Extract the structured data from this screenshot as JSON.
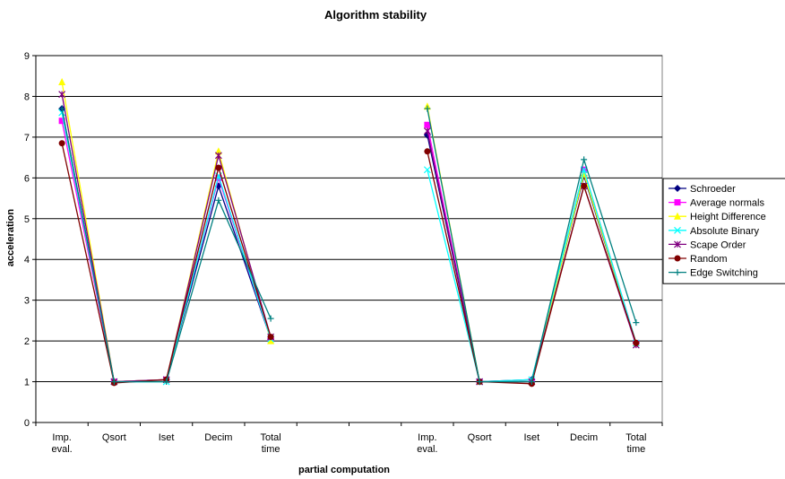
{
  "chart_data": {
    "type": "line",
    "title": "Algorithm stability",
    "xlabel": "partial computation",
    "ylabel": "acceleration",
    "ylim": [
      0,
      9
    ],
    "yticks": [
      0,
      1,
      2,
      3,
      4,
      5,
      6,
      7,
      8,
      9
    ],
    "grid": "horizontal",
    "legend_position": "right",
    "categories": [
      [
        "Imp.",
        "eval."
      ],
      [
        "Qsort"
      ],
      [
        "Iset"
      ],
      [
        "Decim"
      ],
      [
        "Total",
        "time"
      ],
      [
        ""
      ],
      [
        ""
      ],
      [
        "Imp.",
        "eval."
      ],
      [
        "Qsort"
      ],
      [
        "Iset"
      ],
      [
        "Decim"
      ],
      [
        "Total",
        "time"
      ]
    ],
    "series": [
      {
        "name": "Schroeder",
        "color": "#000080",
        "marker": "diamond",
        "values": [
          7.7,
          1.0,
          1.05,
          5.8,
          2.05,
          null,
          null,
          7.05,
          1.0,
          1.05,
          6.05,
          1.95
        ]
      },
      {
        "name": "Average normals",
        "color": "#ff00ff",
        "marker": "square",
        "values": [
          7.4,
          1.0,
          1.05,
          6.0,
          2.05,
          null,
          null,
          7.3,
          1.0,
          1.0,
          6.2,
          1.95
        ]
      },
      {
        "name": "Height Difference",
        "color": "#ffff00",
        "marker": "triangle",
        "values": [
          8.35,
          1.0,
          1.05,
          6.65,
          2.0,
          null,
          null,
          7.75,
          1.0,
          1.0,
          6.1,
          1.95
        ]
      },
      {
        "name": "Absolute Binary",
        "color": "#00ffff",
        "marker": "x",
        "values": [
          7.6,
          1.0,
          1.0,
          6.05,
          2.05,
          null,
          null,
          6.2,
          1.0,
          1.05,
          6.2,
          1.95
        ]
      },
      {
        "name": "Scape Order",
        "color": "#800080",
        "marker": "asterisk",
        "values": [
          8.05,
          1.0,
          1.05,
          6.55,
          2.1,
          null,
          null,
          7.15,
          1.0,
          1.0,
          5.8,
          1.9
        ]
      },
      {
        "name": "Random",
        "color": "#800000",
        "marker": "circle",
        "values": [
          6.85,
          0.97,
          1.05,
          6.25,
          2.1,
          null,
          null,
          6.65,
          1.0,
          0.95,
          5.8,
          1.95
        ]
      },
      {
        "name": "Edge Switching",
        "color": "#008080",
        "marker": "plus",
        "values": [
          7.7,
          1.0,
          1.0,
          5.45,
          2.55,
          null,
          null,
          7.7,
          1.0,
          1.0,
          6.45,
          2.45
        ]
      }
    ]
  }
}
